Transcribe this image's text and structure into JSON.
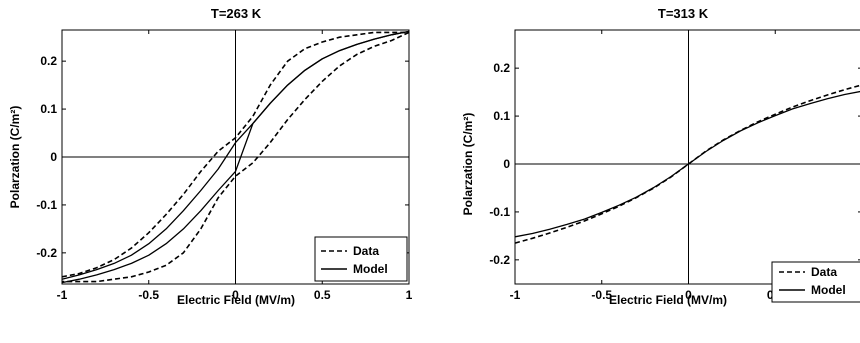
{
  "chart_data": [
    {
      "type": "line",
      "title": "T=263 K",
      "xlabel": "Electric Field (MV/m)",
      "ylabel": "Polarzation (C/m²)",
      "xlim": [
        -1,
        1
      ],
      "ylim": [
        -0.265,
        0.265
      ],
      "xticks": [
        -1,
        -0.5,
        0,
        0.5,
        1
      ],
      "xtick_labels": [
        "-1",
        "-0.5",
        "0",
        "0.5",
        "1"
      ],
      "yticks": [
        -0.2,
        -0.1,
        0,
        0.1,
        0.2
      ],
      "ytick_labels": [
        "-0.2",
        "-0.1",
        "0",
        "0.1",
        "0.2"
      ],
      "grid": false,
      "legend_position": "bottom-right",
      "series": [
        {
          "name": "Data",
          "style": "dashed",
          "branches": [
            {
              "x": [
                -1,
                -0.9,
                -0.8,
                -0.7,
                -0.6,
                -0.5,
                -0.4,
                -0.3,
                -0.2,
                -0.1,
                0,
                0.1,
                0.2,
                0.3,
                0.4,
                0.5,
                0.6,
                0.7,
                0.8,
                0.9,
                1
              ],
              "y": [
                -0.25,
                -0.243,
                -0.231,
                -0.214,
                -0.19,
                -0.158,
                -0.12,
                -0.078,
                -0.03,
                0.012,
                0.04,
                0.085,
                0.15,
                0.2,
                0.226,
                0.24,
                0.25,
                0.255,
                0.26,
                0.26,
                0.26
              ]
            },
            {
              "x": [
                1,
                0.9,
                0.8,
                0.7,
                0.6,
                0.5,
                0.4,
                0.3,
                0.2,
                0.1,
                0,
                -0.1,
                -0.2,
                -0.3,
                -0.4,
                -0.5,
                -0.6,
                -0.7,
                -0.8,
                -0.9,
                -1
              ],
              "y": [
                0.26,
                0.243,
                0.231,
                0.214,
                0.19,
                0.158,
                0.12,
                0.078,
                0.03,
                -0.012,
                -0.04,
                -0.085,
                -0.15,
                -0.2,
                -0.226,
                -0.24,
                -0.25,
                -0.255,
                -0.26,
                -0.26,
                -0.26
              ]
            }
          ]
        },
        {
          "name": "Model",
          "style": "solid",
          "branches": [
            {
              "x": [
                -1,
                -0.9,
                -0.8,
                -0.7,
                -0.6,
                -0.5,
                -0.4,
                -0.3,
                -0.2,
                -0.1,
                0,
                0.1,
                0.2,
                0.3,
                0.4,
                0.5,
                0.6,
                0.7,
                0.8,
                0.9,
                1
              ],
              "y": [
                -0.255,
                -0.246,
                -0.235,
                -0.222,
                -0.205,
                -0.181,
                -0.15,
                -0.112,
                -0.07,
                -0.025,
                0.03,
                0.07,
                0.112,
                0.15,
                0.181,
                0.205,
                0.222,
                0.235,
                0.246,
                0.255,
                0.262
              ]
            },
            {
              "x": [
                1,
                0.9,
                0.8,
                0.7,
                0.6,
                0.5,
                0.4,
                0.3,
                0.2,
                0.1,
                0,
                -0.1,
                -0.2,
                -0.3,
                -0.4,
                -0.5,
                -0.6,
                -0.7,
                -0.8,
                -0.9,
                -1
              ],
              "y": [
                0.262,
                0.255,
                0.246,
                0.235,
                0.222,
                0.205,
                0.181,
                0.15,
                0.112,
                0.07,
                -0.03,
                -0.07,
                -0.112,
                -0.15,
                -0.181,
                -0.205,
                -0.222,
                -0.235,
                -0.246,
                -0.255,
                -0.262
              ]
            }
          ]
        }
      ]
    },
    {
      "type": "line",
      "title": "T=313 K",
      "xlabel": "Electric Field (MV/m)",
      "ylabel": "Polarzation (C/m²)",
      "xlim": [
        -1,
        1
      ],
      "ylim": [
        -0.265,
        0.265
      ],
      "xticks": [
        -1,
        -0.5,
        0,
        0.5
      ],
      "xtick_labels": [
        "-1",
        "-0.5",
        "0",
        "0.5"
      ],
      "yticks": [
        -0.2,
        -0.1,
        0,
        0.1,
        0.2
      ],
      "ytick_labels": [
        "-0.2",
        "-0.1",
        "0",
        "0.1",
        "0.2"
      ],
      "grid": false,
      "legend_position": "bottom-right",
      "series": [
        {
          "name": "Data",
          "style": "dashed",
          "branches": [
            {
              "x": [
                -1,
                -0.9,
                -0.8,
                -0.7,
                -0.6,
                -0.5,
                -0.4,
                -0.3,
                -0.2,
                -0.1,
                0,
                0.1,
                0.2,
                0.3,
                0.4,
                0.5,
                0.6,
                0.7,
                0.8,
                0.9,
                1
              ],
              "y": [
                -0.165,
                -0.155,
                -0.144,
                -0.132,
                -0.119,
                -0.104,
                -0.088,
                -0.07,
                -0.05,
                -0.027,
                0,
                0.027,
                0.05,
                0.07,
                0.088,
                0.104,
                0.119,
                0.132,
                0.144,
                0.155,
                0.165
              ]
            }
          ]
        },
        {
          "name": "Model",
          "style": "solid",
          "branches": [
            {
              "x": [
                -1,
                -0.9,
                -0.8,
                -0.7,
                -0.6,
                -0.5,
                -0.4,
                -0.3,
                -0.2,
                -0.1,
                0,
                0.1,
                0.2,
                0.3,
                0.4,
                0.5,
                0.6,
                0.7,
                0.8,
                0.9,
                1
              ],
              "y": [
                -0.152,
                -0.145,
                -0.136,
                -0.126,
                -0.115,
                -0.101,
                -0.086,
                -0.069,
                -0.049,
                -0.026,
                0,
                0.026,
                0.049,
                0.069,
                0.086,
                0.101,
                0.115,
                0.126,
                0.136,
                0.145,
                0.152
              ]
            }
          ]
        }
      ]
    }
  ]
}
